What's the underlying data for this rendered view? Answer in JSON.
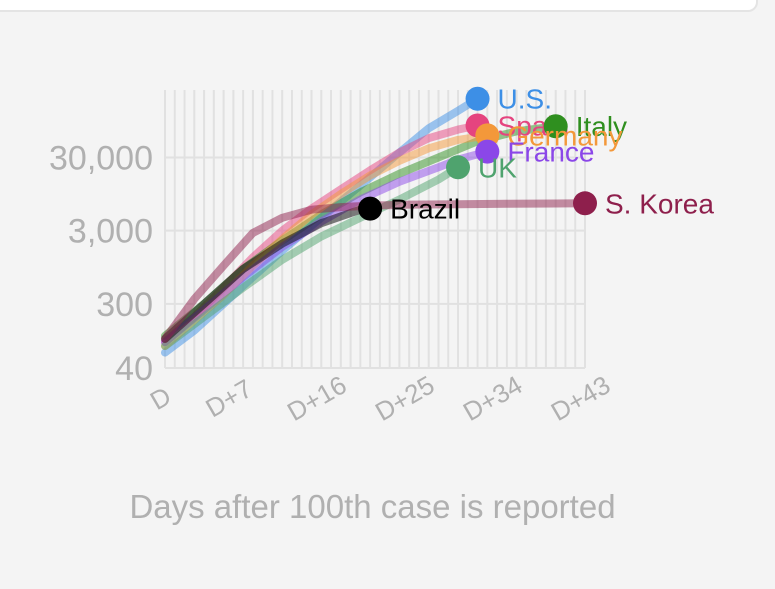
{
  "chart_data": {
    "type": "line",
    "xlabel": "Days after 100th case is reported",
    "x_ticks": [
      0,
      7,
      16,
      25,
      34,
      43
    ],
    "x_tick_labels": [
      "D",
      "D+7",
      "D+16",
      "D+25",
      "D+34",
      "D+43"
    ],
    "xlim": [
      0,
      43
    ],
    "y_scale": "log",
    "y_ticks": [
      40,
      300,
      3000,
      30000
    ],
    "y_tick_labels": [
      "40",
      "300",
      "3,000",
      "30,000"
    ],
    "ylim": [
      40,
      250000
    ],
    "grid": true,
    "series": [
      {
        "name": "U.S.",
        "color": "#3d8fe6",
        "x": [
          0,
          3,
          6,
          9,
          12,
          15,
          18,
          21,
          24,
          27,
          30,
          32
        ],
        "y": [
          65,
          130,
          300,
          700,
          1600,
          3500,
          7500,
          16000,
          35000,
          75000,
          130000,
          190000
        ]
      },
      {
        "name": "Spain",
        "color": "#e5447f",
        "x": [
          0,
          3,
          6,
          9,
          12,
          15,
          18,
          21,
          24,
          27,
          30,
          32
        ],
        "y": [
          90,
          200,
          500,
          1300,
          3000,
          6000,
          11000,
          20000,
          35000,
          55000,
          72000,
          82000
        ]
      },
      {
        "name": "Italy",
        "color": "#2f8f1f",
        "x": [
          0,
          4,
          8,
          12,
          16,
          20,
          24,
          28,
          32,
          36,
          40
        ],
        "y": [
          110,
          300,
          900,
          2200,
          5000,
          10000,
          18000,
          30000,
          50000,
          68000,
          80000
        ]
      },
      {
        "name": "Germany",
        "color": "#f3983a",
        "x": [
          0,
          3,
          6,
          9,
          12,
          15,
          18,
          21,
          24,
          27,
          30,
          33
        ],
        "y": [
          80,
          180,
          400,
          1000,
          2300,
          5000,
          9500,
          17000,
          27000,
          40000,
          52000,
          60000
        ]
      },
      {
        "name": "France",
        "color": "#8b47e8",
        "x": [
          0,
          4,
          8,
          12,
          16,
          20,
          24,
          28,
          30,
          33
        ],
        "y": [
          90,
          250,
          700,
          1800,
          4000,
          8000,
          14000,
          22000,
          28000,
          36000
        ]
      },
      {
        "name": "UK",
        "color": "#4fa36e",
        "x": [
          0,
          4,
          8,
          12,
          16,
          20,
          24,
          28,
          30
        ],
        "y": [
          80,
          200,
          500,
          1200,
          2500,
          4500,
          8000,
          15000,
          22000
        ]
      },
      {
        "name": "Brazil",
        "color": "#000000",
        "x": [
          0,
          4,
          8,
          12,
          16,
          20,
          21
        ],
        "y": [
          100,
          300,
          900,
          2000,
          3800,
          5800,
          6000
        ]
      },
      {
        "name": "S. Korea",
        "color": "#8e1f4c",
        "x": [
          0,
          3,
          6,
          9,
          12,
          15,
          18,
          21,
          25,
          30,
          35,
          40,
          43
        ],
        "y": [
          100,
          350,
          1000,
          2800,
          4500,
          5800,
          6300,
          6600,
          6800,
          6900,
          7000,
          7050,
          7100
        ]
      }
    ]
  },
  "colors": {
    "background": "#f4f4f4",
    "grid": "#e1e1e1",
    "axis_text": "#b0b0b0"
  }
}
